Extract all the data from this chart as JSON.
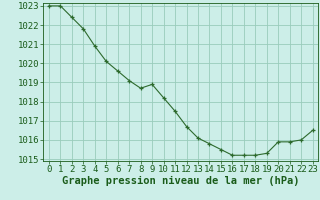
{
  "x": [
    0,
    1,
    2,
    3,
    4,
    5,
    6,
    7,
    8,
    9,
    10,
    11,
    12,
    13,
    14,
    15,
    16,
    17,
    18,
    19,
    20,
    21,
    22,
    23
  ],
  "y": [
    1023.0,
    1023.0,
    1022.4,
    1021.8,
    1020.9,
    1020.1,
    1019.6,
    1019.1,
    1018.7,
    1018.9,
    1018.2,
    1017.5,
    1016.7,
    1016.1,
    1015.8,
    1015.5,
    1015.2,
    1015.2,
    1015.2,
    1015.3,
    1015.9,
    1015.9,
    1016.0,
    1016.5
  ],
  "ylim_min": 1015,
  "ylim_max": 1023,
  "xlim_min": 0,
  "xlim_max": 23,
  "yticks": [
    1015,
    1016,
    1017,
    1018,
    1019,
    1020,
    1021,
    1022,
    1023
  ],
  "xticks": [
    0,
    1,
    2,
    3,
    4,
    5,
    6,
    7,
    8,
    9,
    10,
    11,
    12,
    13,
    14,
    15,
    16,
    17,
    18,
    19,
    20,
    21,
    22,
    23
  ],
  "line_color": "#2d6a2d",
  "marker_color": "#2d6a2d",
  "bg_color": "#cceee8",
  "grid_color": "#99ccbb",
  "xlabel": "Graphe pression niveau de la mer (hPa)",
  "xlabel_color": "#1a5c1a",
  "tick_color": "#1a5c1a",
  "tick_fontsize": 6.5,
  "xlabel_fontsize": 7.5
}
